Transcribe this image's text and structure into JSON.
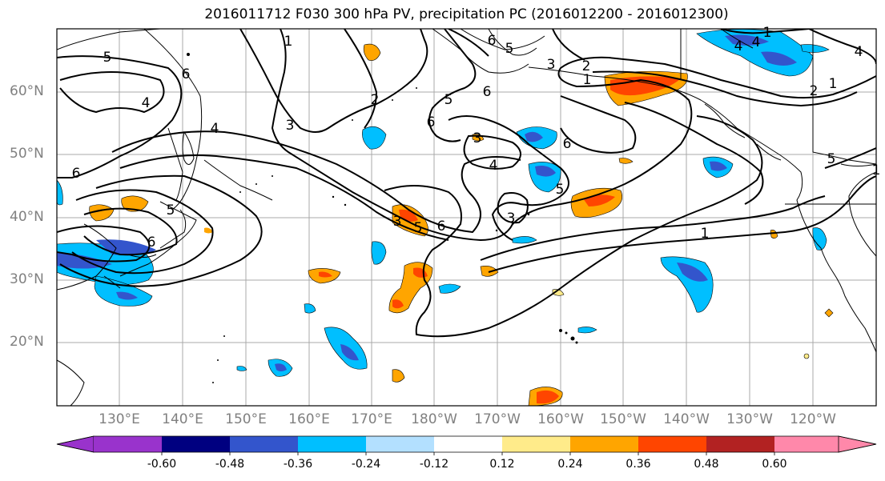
{
  "title": "2016011712 F030 300 hPa PV, precipitation PC (2016012200 - 2016012300)",
  "lat_labels": [
    "60°N",
    "50°N",
    "40°N",
    "30°N",
    "20°N"
  ],
  "lon_labels": [
    "130°E",
    "140°E",
    "150°E",
    "160°E",
    "170°E",
    "180°W",
    "170°W",
    "160°W",
    "150°W",
    "140°W",
    "130°W",
    "120°W"
  ],
  "contour_labels": [
    "5",
    "6",
    "4",
    "4",
    "6",
    "5",
    "6",
    "1",
    "2",
    "3",
    "6",
    "5",
    "5",
    "6",
    "6",
    "4",
    "5",
    "3",
    "3",
    "5",
    "6",
    "3",
    "2",
    "1",
    "6",
    "4",
    "1",
    "2",
    "1",
    "5",
    "4",
    "4",
    "1",
    "3",
    "1"
  ],
  "colorbar": {
    "ticks": [
      "-0.60",
      "-0.48",
      "-0.36",
      "-0.24",
      "-0.12",
      "0.12",
      "0.24",
      "0.36",
      "0.48",
      "0.60"
    ],
    "colors": [
      "#9933cc",
      "#000080",
      "#3355cc",
      "#00bfff",
      "#b3e0ff",
      "#ffffff",
      "#ffeb8a",
      "#ffa500",
      "#ff4500",
      "#b22222",
      "#ff88aa",
      "#ff88aa"
    ]
  }
}
